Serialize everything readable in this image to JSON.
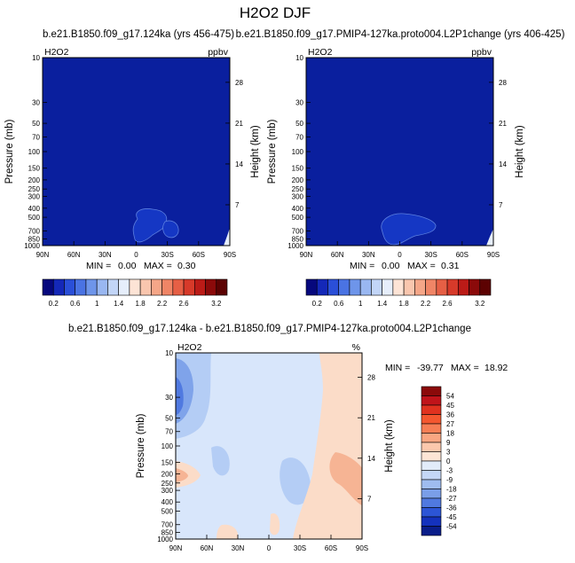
{
  "figure_title": "H2O2 DJF",
  "colors": {
    "panel_blue": "#0a1f9e",
    "blob_blue": "#1537c4",
    "blob_edge": "#5c7fdf",
    "diff_light_blue": "#d8e6fb",
    "diff_mid_blue": "#b4cdf5",
    "diff_blue": "#7fa3ea",
    "diff_pink": "#fbdcc8",
    "diff_orange": "#f6b494"
  },
  "chart_data": [
    {
      "type": "heatmap",
      "title": "b.e21.B1850.f09_g17.124ka (yrs 456-475)",
      "corner_left": "H2O2",
      "corner_right": "ppbv",
      "ylabel": "Pressure (mb)",
      "ylabel_right": "Height (km)",
      "x_ticks": [
        "90N",
        "60N",
        "30N",
        "0",
        "30S",
        "60S",
        "90S"
      ],
      "y_ticks": [
        "10",
        "30",
        "50",
        "70",
        "100",
        "150",
        "200",
        "250",
        "300",
        "400",
        "500",
        "700",
        "850",
        "1000"
      ],
      "height_ticks": [
        "28",
        "21",
        "14",
        "7"
      ],
      "ylim": [
        1000,
        10
      ],
      "stats_min_label": "MIN =",
      "stats_min": "0.00",
      "stats_max_label": "MAX =",
      "stats_max": "0.30",
      "colorbar_levels": [
        0.2,
        0.4,
        0.6,
        0.8,
        1,
        1.2,
        1.4,
        1.6,
        1.8,
        2,
        2.2,
        2.4,
        2.6,
        2.8,
        3,
        3.2
      ],
      "colorbar_labels": [
        "0.2",
        "0.6",
        "1",
        "1.4",
        "1.8",
        "2.2",
        "2.6",
        "3.2"
      ],
      "colorbar_colors": [
        "#06087d",
        "#1428b8",
        "#2a4fd8",
        "#4a73e3",
        "#6e95ea",
        "#99b7f1",
        "#c2d5f7",
        "#e6eefb",
        "#fde4d6",
        "#f9c6ae",
        "#f5a688",
        "#f08566",
        "#e65f45",
        "#d73a2a",
        "#bb1b17",
        "#8b0a0a",
        "#5c0202"
      ]
    },
    {
      "type": "heatmap",
      "title": "b.e21.B1850.f09_g17.PMIP4-127ka.proto004.L2P1change (yrs 406-425)",
      "corner_left": "H2O2",
      "corner_right": "ppbv",
      "ylabel": "Pressure (mb)",
      "ylabel_right": "Height (km)",
      "x_ticks": [
        "90N",
        "60N",
        "30N",
        "0",
        "30S",
        "60S",
        "90S"
      ],
      "y_ticks": [
        "10",
        "30",
        "50",
        "70",
        "100",
        "150",
        "200",
        "250",
        "300",
        "400",
        "500",
        "700",
        "850",
        "1000"
      ],
      "height_ticks": [
        "28",
        "21",
        "14",
        "7"
      ],
      "ylim": [
        1000,
        10
      ],
      "stats_min_label": "MIN =",
      "stats_min": "0.00",
      "stats_max_label": "MAX =",
      "stats_max": "0.31",
      "colorbar_levels": [
        0.2,
        0.4,
        0.6,
        0.8,
        1,
        1.2,
        1.4,
        1.6,
        1.8,
        2,
        2.2,
        2.4,
        2.6,
        2.8,
        3,
        3.2
      ],
      "colorbar_labels": [
        "0.2",
        "0.6",
        "1",
        "1.4",
        "1.8",
        "2.2",
        "2.6",
        "3.2"
      ],
      "colorbar_colors": [
        "#06087d",
        "#1428b8",
        "#2a4fd8",
        "#4a73e3",
        "#6e95ea",
        "#99b7f1",
        "#c2d5f7",
        "#e6eefb",
        "#fde4d6",
        "#f9c6ae",
        "#f5a688",
        "#f08566",
        "#e65f45",
        "#d73a2a",
        "#bb1b17",
        "#8b0a0a",
        "#5c0202"
      ]
    },
    {
      "type": "heatmap",
      "title": "b.e21.B1850.f09_g17.124ka - b.e21.B1850.f09_g17.PMIP4-127ka.proto004.L2P1change",
      "corner_left": "H2O2",
      "corner_right": "%",
      "ylabel": "Pressure (mb)",
      "ylabel_right": "Height (km)",
      "x_ticks": [
        "90N",
        "60N",
        "30N",
        "0",
        "30S",
        "60S",
        "90S"
      ],
      "y_ticks": [
        "10",
        "30",
        "50",
        "70",
        "100",
        "150",
        "200",
        "250",
        "300",
        "400",
        "500",
        "700",
        "850",
        "1000"
      ],
      "height_ticks": [
        "28",
        "21",
        "14",
        "7"
      ],
      "ylim": [
        1000,
        10
      ],
      "stats_min_label": "MIN =",
      "stats_min": "-39.77",
      "stats_max_label": "MAX =",
      "stats_max": "18.92",
      "colorbar_levels": [
        54,
        45,
        36,
        27,
        18,
        9,
        3,
        0,
        -3,
        -9,
        -18,
        -27,
        -36,
        -45,
        -54
      ],
      "colorbar_labels": [
        "54",
        "45",
        "36",
        "27",
        "18",
        "9",
        "3",
        "0",
        "-3",
        "-9",
        "-18",
        "-27",
        "-36",
        "-45",
        "-54"
      ],
      "colorbar_colors": [
        "#8b0a0a",
        "#c0141a",
        "#e0321f",
        "#f4572f",
        "#f77e55",
        "#f9a682",
        "#fbc8ad",
        "#fde5d5",
        "#e2ecfa",
        "#c4d7f6",
        "#9fbcf0",
        "#7a9ee8",
        "#5079e0",
        "#2c55d6",
        "#1432bd",
        "#0a1e8a"
      ]
    }
  ]
}
